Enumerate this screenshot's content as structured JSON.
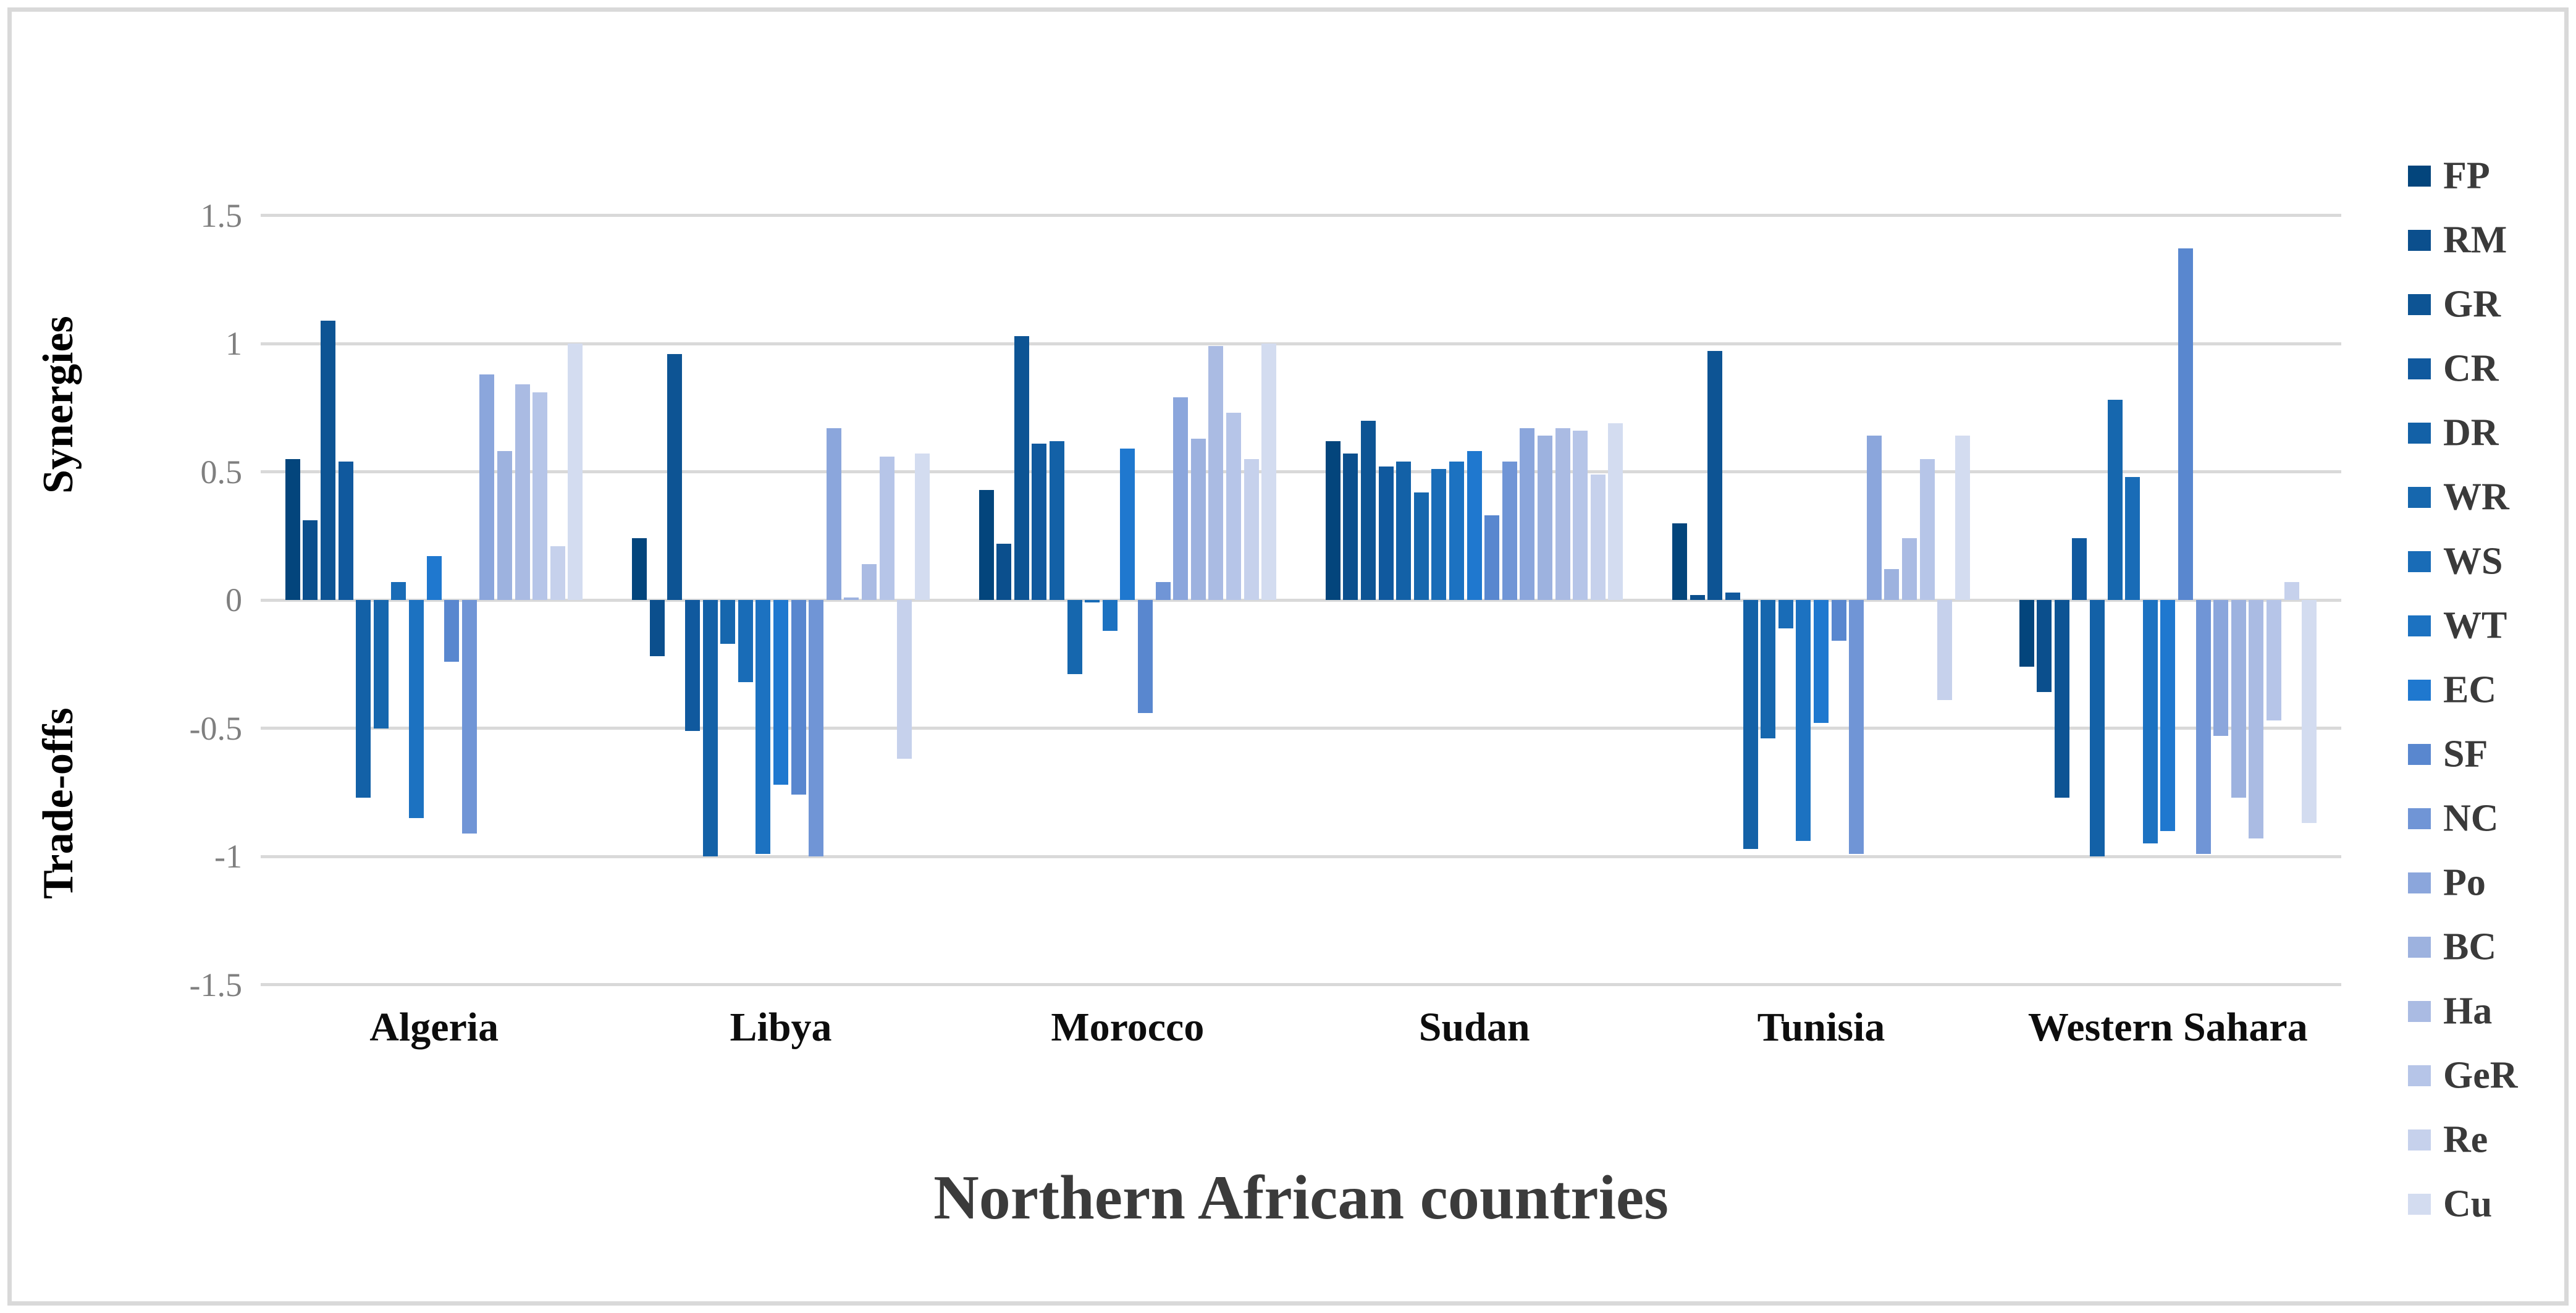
{
  "chart_data": {
    "type": "bar",
    "title": "Northern African countries",
    "xlabel": "Northern African countries",
    "ylabel_positive": "Synergies",
    "ylabel_negative": "Trade-offs",
    "ylim": [
      -1.5,
      1.5
    ],
    "grid": true,
    "legend_position": "right",
    "yticks": [
      {
        "value": 1.5,
        "label": "1.5"
      },
      {
        "value": 1.0,
        "label": "1"
      },
      {
        "value": 0.5,
        "label": "0.5"
      },
      {
        "value": 0.0,
        "label": "0"
      },
      {
        "value": -0.5,
        "label": "-0.5"
      },
      {
        "value": -1.0,
        "label": "-1"
      },
      {
        "value": -1.5,
        "label": "-1.5"
      }
    ],
    "categories": [
      "Algeria",
      "Libya",
      "Morocco",
      "Sudan",
      "Tunisia",
      "Western Sahara"
    ],
    "series": [
      {
        "name": "FP",
        "color": "#03457c",
        "values": [
          0.55,
          0.24,
          0.43,
          0.62,
          0.3,
          -0.26
        ]
      },
      {
        "name": "RM",
        "color": "#0b4f8d",
        "values": [
          0.31,
          -0.22,
          0.22,
          0.57,
          0.02,
          -0.36
        ]
      },
      {
        "name": "GR",
        "color": "#0d5494",
        "values": [
          1.09,
          0.96,
          1.03,
          0.7,
          0.97,
          -0.77
        ]
      },
      {
        "name": "CR",
        "color": "#10599e",
        "values": [
          0.54,
          -0.51,
          0.61,
          0.52,
          0.03,
          0.24
        ]
      },
      {
        "name": "DR",
        "color": "#1361a7",
        "values": [
          -0.77,
          -1.0,
          0.62,
          0.54,
          -0.97,
          -1.0
        ]
      },
      {
        "name": "WR",
        "color": "#1667ae",
        "values": [
          -0.5,
          -0.17,
          -0.29,
          0.42,
          -0.54,
          0.78
        ]
      },
      {
        "name": "WS",
        "color": "#196cb7",
        "values": [
          0.07,
          -0.32,
          -0.01,
          0.51,
          -0.11,
          0.48
        ]
      },
      {
        "name": "WT",
        "color": "#1c72c1",
        "values": [
          -0.85,
          -0.99,
          -0.12,
          0.54,
          -0.94,
          -0.95
        ]
      },
      {
        "name": "EC",
        "color": "#1f78cf",
        "values": [
          0.17,
          -0.72,
          0.59,
          0.58,
          -0.48,
          -0.9
        ]
      },
      {
        "name": "SF",
        "color": "#5987cf",
        "values": [
          -0.24,
          -0.76,
          -0.44,
          0.33,
          -0.16,
          1.37
        ]
      },
      {
        "name": "NC",
        "color": "#7095d6",
        "values": [
          -0.91,
          -1.0,
          0.07,
          0.54,
          -0.99,
          -0.99
        ]
      },
      {
        "name": "Po",
        "color": "#8ba6dc",
        "values": [
          0.88,
          0.67,
          0.79,
          0.67,
          0.64,
          -0.53
        ]
      },
      {
        "name": "BC",
        "color": "#9db2df",
        "values": [
          0.58,
          0.01,
          0.63,
          0.64,
          0.12,
          -0.77
        ]
      },
      {
        "name": "Ha",
        "color": "#aabbe3",
        "values": [
          0.84,
          0.14,
          0.99,
          0.67,
          0.24,
          -0.93
        ]
      },
      {
        "name": "GeR",
        "color": "#b6c5e8",
        "values": [
          0.81,
          0.56,
          0.73,
          0.66,
          0.55,
          -0.47
        ]
      },
      {
        "name": "Re",
        "color": "#c6d1ec",
        "values": [
          0.21,
          -0.62,
          0.55,
          0.49,
          -0.39,
          0.07
        ]
      },
      {
        "name": "Cu",
        "color": "#d3dcf0",
        "values": [
          1.0,
          0.57,
          1.0,
          0.69,
          0.64,
          -0.87
        ]
      }
    ]
  },
  "styles": {
    "gridline_color": "#d9d9d9",
    "frame_border_color": "#d9d9d9",
    "tick_label_color": "#7f7f7f",
    "country_label_color": "#0d0d0d",
    "title_color": "#3b3b3b",
    "legend_text_color": "#3a3a3a",
    "background_color": "#ffffff"
  }
}
